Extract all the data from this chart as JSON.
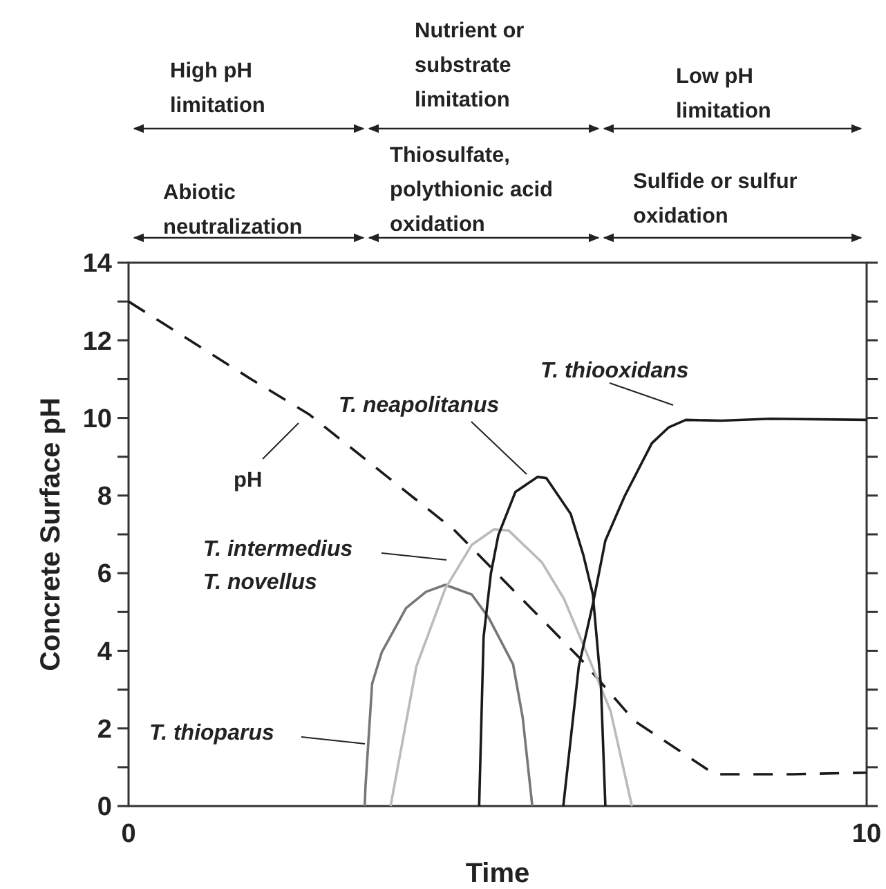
{
  "chart_data": {
    "type": "line",
    "xlabel": "Time",
    "ylabel": "Concrete Surface pH",
    "xlim": [
      0,
      10
    ],
    "xticks": [
      0,
      10
    ],
    "ylim": [
      0,
      14
    ],
    "yticks": [
      0,
      {
        "value": 1,
        "label": null
      },
      2,
      {
        "value": 3,
        "label": null
      },
      4,
      {
        "value": 5,
        "label": null
      },
      6,
      {
        "value": 7,
        "label": null
      },
      8,
      {
        "value": 9,
        "label": null
      },
      10,
      {
        "value": 11,
        "label": null
      },
      12,
      {
        "value": 13,
        "label": null
      },
      14
    ],
    "grid": false,
    "series": [
      {
        "color": "#1a1a1a",
        "line_style": "dashed",
        "x": [
          0,
          1.66,
          2.44,
          4.42,
          6.12,
          6.85,
          7.94,
          9.0,
          10
        ],
        "values": [
          13.0,
          11.0,
          10.1,
          7.1,
          3.8,
          2.2,
          0.82,
          0.82,
          0.86
        ]
      },
      {
        "color": "#777777",
        "line_style": "solid",
        "x": [
          3.2,
          3.21,
          3.3,
          3.43,
          3.76,
          4.03,
          4.29,
          4.65,
          4.88,
          5.21,
          5.34,
          5.47
        ],
        "values": [
          0,
          0.5,
          3.15,
          3.96,
          5.1,
          5.52,
          5.7,
          5.45,
          4.85,
          3.65,
          2.28,
          0
        ]
      },
      {
        "color": "#bbbbbb",
        "line_style": "solid",
        "x": [
          3.55,
          3.9,
          4.29,
          4.65,
          4.95,
          5.15,
          5.6,
          5.9,
          6.26,
          6.53,
          6.82
        ],
        "values": [
          0,
          3.6,
          5.6,
          6.73,
          7.13,
          7.1,
          6.28,
          5.34,
          3.7,
          2.45,
          0
        ]
      },
      {
        "color": "#1a1a1a",
        "line_style": "solid",
        "x": [
          4.75,
          4.81,
          4.91,
          5.01,
          5.24,
          5.54,
          5.66,
          5.99,
          6.16,
          6.29,
          6.4,
          6.46
        ],
        "values": [
          0,
          4.35,
          6.0,
          6.98,
          8.09,
          8.48,
          8.45,
          7.53,
          6.48,
          5.46,
          3.1,
          0
        ]
      },
      {
        "color": "#1a1a1a",
        "line_style": "solid",
        "x": [
          5.89,
          6.1,
          6.29,
          6.46,
          6.72,
          7.09,
          7.32,
          7.55,
          8.03,
          8.7,
          10
        ],
        "values": [
          0,
          3.6,
          5.2,
          6.84,
          7.98,
          9.35,
          9.76,
          9.95,
          9.93,
          9.98,
          9.95
        ]
      }
    ],
    "annotations": [
      "pH",
      "T. thioparus",
      "T. intermedius\nT. novellus",
      "T. neapolitanus",
      "T. thiooxidans",
      "High pH\nlimitation",
      "Nutrient or\nsubstrate\nlimitation",
      "Low pH\nlimitation",
      "Abiotic\nneutralization",
      "Thiosulfate,\npolythionic acid\noxidation",
      "Sulfide or sulfur\noxidation"
    ]
  }
}
